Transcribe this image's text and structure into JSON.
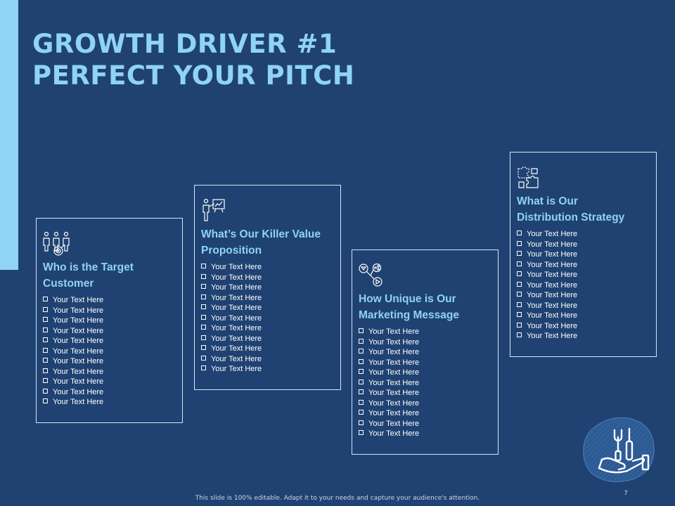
{
  "slide": {
    "title_line1": "GROWTH DRIVER #1",
    "title_line2": "PERFECT YOUR PITCH",
    "footer": "This slide is 100% editable. Adapt it to your needs and capture your audience's attention.",
    "page_number": "7"
  },
  "icons": {
    "card1": "team-target-icon",
    "card2": "presenter-board-icon",
    "card3": "social-media-icon",
    "card4": "puzzle-pieces-icon",
    "deco": "tools-hand-icon"
  },
  "cards": [
    {
      "title_line1": "Who is the Target",
      "title_line2": "Customer",
      "items": [
        "Your Text Here",
        "Your Text Here",
        "Your Text Here",
        "Your Text Here",
        "Your Text Here",
        "Your Text Here",
        "Your Text Here",
        "Your Text Here",
        "Your Text Here",
        "Your Text Here",
        "Your Text Here"
      ]
    },
    {
      "title_line1": "What’s Our Killer Value",
      "title_line2": "Proposition",
      "items": [
        "Your Text Here",
        "Your Text Here",
        "Your Text Here",
        "Your Text Here",
        "Your Text Here",
        "Your Text Here",
        "Your Text Here",
        "Your Text Here",
        "Your Text Here",
        "Your Text Here",
        "Your Text Here"
      ]
    },
    {
      "title_line1": "How Unique is Our",
      "title_line2": "Marketing Message",
      "items": [
        "Your Text Here",
        "Your Text Here",
        "Your Text Here",
        "Your Text Here",
        "Your Text Here",
        "Your Text Here",
        "Your Text Here",
        "Your Text Here",
        "Your Text Here",
        "Your Text Here",
        "Your Text Here"
      ]
    },
    {
      "title_line1": "What is Our",
      "title_line2": "Distribution Strategy",
      "items": [
        "Your Text Here",
        "Your Text Here",
        "Your Text Here",
        "Your Text Here",
        "Your Text Here",
        "Your Text Here",
        "Your Text Here",
        "Your Text Here",
        "Your Text Here",
        "Your Text Here",
        "Your Text Here"
      ]
    }
  ],
  "colors": {
    "background": "#1f4272",
    "accent": "#8fd3f5",
    "text": "#ffffff"
  }
}
